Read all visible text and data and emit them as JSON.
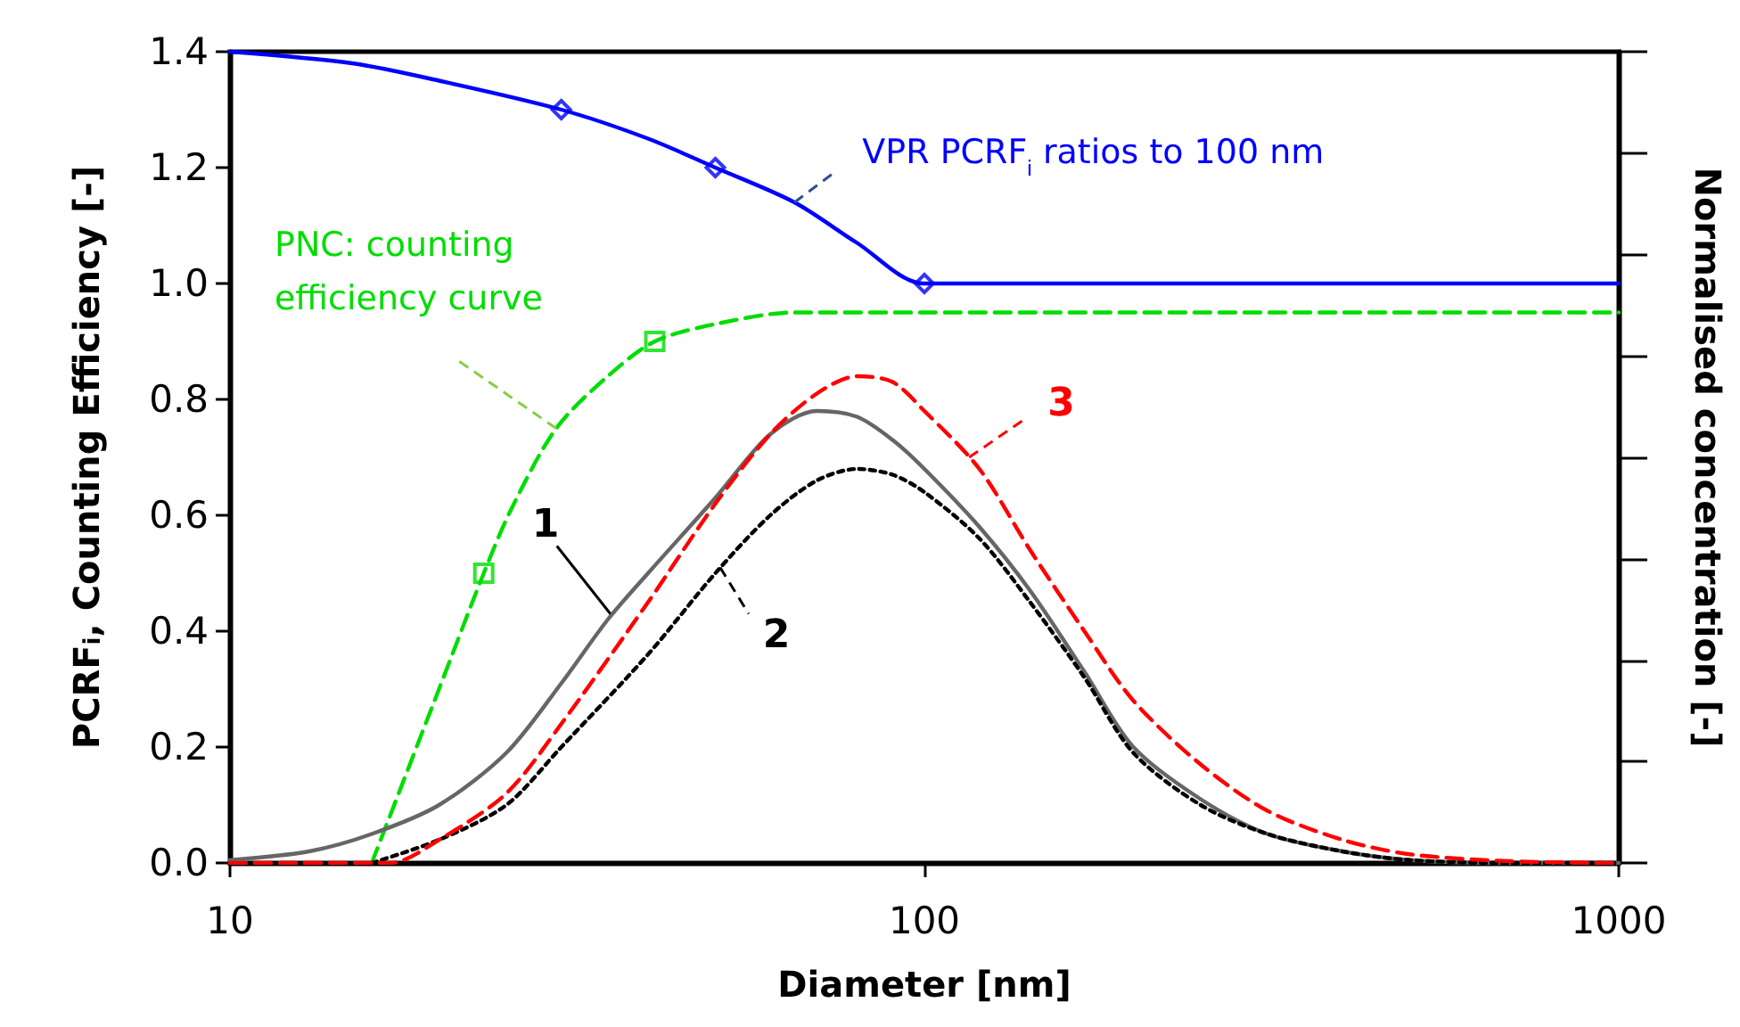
{
  "chart_data": {
    "type": "line",
    "xlabel": "Diameter [nm]",
    "ylabel": "PCRF$_{i}$, Counting Efficiency [-]",
    "y2label": "Normalised concentration [-]",
    "log": "x",
    "xlim": [
      10,
      1000
    ],
    "xticks": [
      10,
      100,
      1000
    ],
    "ylim": [
      0,
      1.4
    ],
    "yticks": [
      {
        "value": 0,
        "label": "0.0"
      },
      0.2,
      0.4,
      0.6,
      0.8,
      {
        "value": 1,
        "label": "1.0"
      },
      1.2,
      1.4
    ],
    "grid": false,
    "series": [
      {
        "color": "#0000ff",
        "line_style": "solid",
        "marker": "none",
        "x": [
          10,
          15,
          20,
          30,
          40,
          50,
          65,
          80,
          100,
          1000
        ],
        "values": [
          1.4,
          1.38,
          1.35,
          1.3,
          1.25,
          1.2,
          1.14,
          1.07,
          1.0,
          1.0
        ]
      },
      {
        "type": "scatter",
        "color": "#0000ff",
        "marker": "diamond",
        "x": [
          30,
          50,
          100
        ],
        "values": [
          1.3,
          1.2,
          1.0
        ]
      },
      {
        "color": "#00dd00",
        "line_style": "dashed",
        "marker": "none",
        "x": [
          16,
          20,
          23.2,
          25.4,
          29.5,
          35,
          40.9,
          50,
          65,
          100,
          1000
        ],
        "values": [
          0,
          0.3,
          0.5,
          0.61,
          0.75,
          0.84,
          0.9,
          0.93,
          0.95,
          0.95,
          0.95
        ]
      },
      {
        "type": "scatter",
        "color": "#00dd00",
        "marker": "square",
        "x": [
          23.2,
          40.9
        ],
        "values": [
          0.5,
          0.9
        ]
      },
      {
        "color": "#666666",
        "line_style": "solid",
        "marker": "none",
        "x": [
          10,
          13,
          16,
          20,
          25,
          30,
          35,
          40,
          50,
          60,
          70,
          80,
          90,
          100,
          120,
          142,
          170,
          200,
          250,
          312,
          400,
          500,
          700,
          1000
        ],
        "values": [
          0.005,
          0.02,
          0.05,
          0.1,
          0.19,
          0.31,
          0.42,
          0.5,
          0.63,
          0.74,
          0.78,
          0.77,
          0.73,
          0.68,
          0.58,
          0.47,
          0.33,
          0.2,
          0.11,
          0.05,
          0.02,
          0.005,
          0,
          0
        ]
      },
      {
        "color": "#000000",
        "line_style": "dotted",
        "marker": "none",
        "x": [
          16,
          20,
          25,
          30,
          40,
          50,
          60,
          70,
          80,
          90,
          100,
          120,
          142,
          170,
          200,
          250,
          312,
          400,
          500,
          700,
          1000
        ],
        "values": [
          0,
          0.04,
          0.1,
          0.2,
          0.36,
          0.5,
          0.6,
          0.66,
          0.68,
          0.67,
          0.64,
          0.56,
          0.45,
          0.32,
          0.19,
          0.1,
          0.05,
          0.02,
          0.005,
          0,
          0
        ]
      },
      {
        "color": "#ff0000",
        "line_style": "dashed",
        "marker": "none",
        "x": [
          10,
          17,
          20,
          25,
          30,
          40,
          50,
          60,
          70,
          80,
          90,
          100,
          120,
          142,
          170,
          200,
          250,
          312,
          400,
          500,
          700,
          1000
        ],
        "values": [
          0,
          0,
          0.04,
          0.12,
          0.24,
          0.45,
          0.62,
          0.74,
          0.81,
          0.84,
          0.83,
          0.78,
          0.68,
          0.54,
          0.4,
          0.28,
          0.17,
          0.09,
          0.04,
          0.015,
          0.003,
          0
        ]
      }
    ],
    "annotations": [
      {
        "text": "VPR PCRF$_{i}$ ratios to 100 nm",
        "x": 65,
        "y": 1.14
      },
      {
        "text": "PNC: counting\nefficiency curve",
        "x": 29.5,
        "y": 0.75
      },
      {
        "text": "1",
        "x": 35.3,
        "y": 0.43
      },
      {
        "text": "2",
        "x": 50.8,
        "y": 0.51
      },
      {
        "text": "3",
        "x": 116,
        "y": 0.7
      }
    ]
  }
}
